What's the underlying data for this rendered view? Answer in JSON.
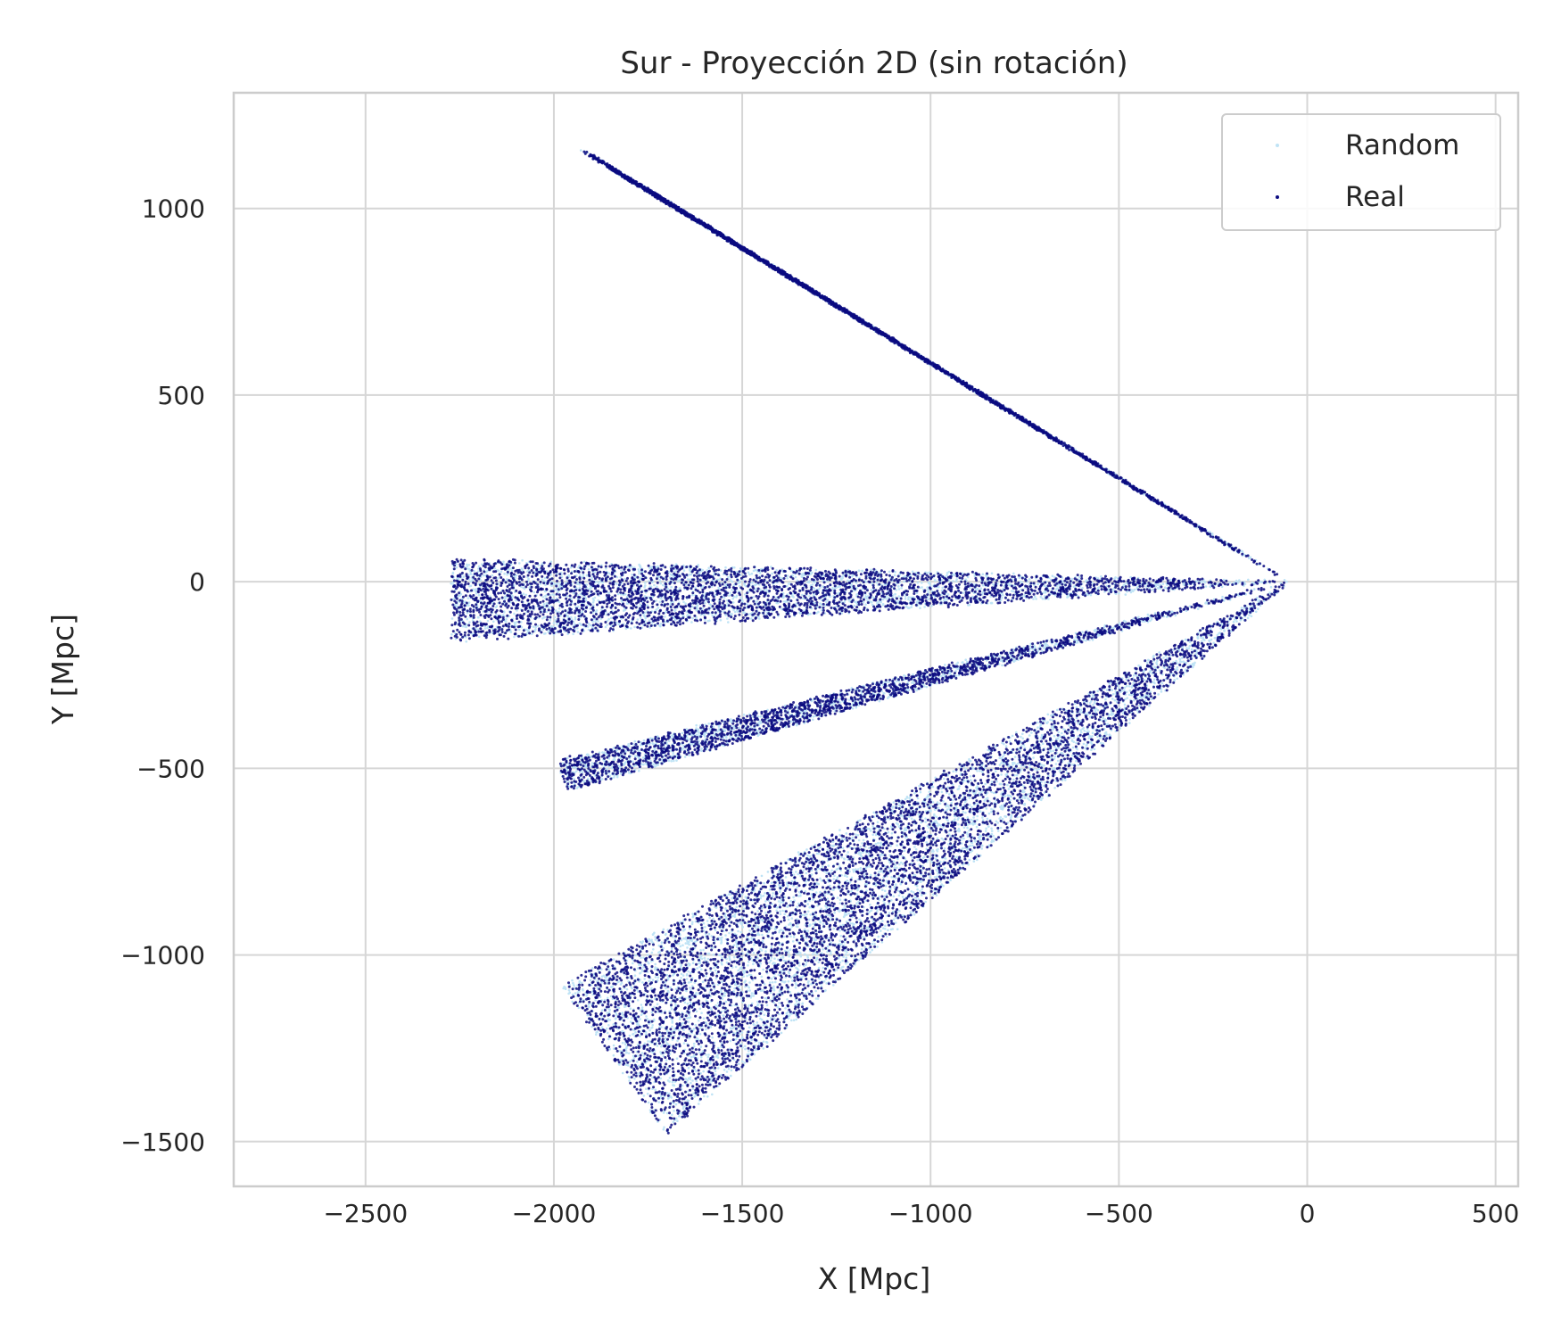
{
  "chart_data": {
    "type": "scatter",
    "title": "Sur - Proyección 2D (sin rotación)",
    "xlabel": "X [Mpc]",
    "ylabel": "Y [Mpc]",
    "xlim": [
      -2850,
      560
    ],
    "ylim": [
      -1620,
      1310
    ],
    "x_ticks": [
      -2500,
      -2000,
      -1500,
      -1000,
      -500,
      0,
      500
    ],
    "y_ticks": [
      -1500,
      -1000,
      -500,
      0,
      500,
      1000
    ],
    "x_tick_labels": [
      "−2500",
      "−2000",
      "−1500",
      "−1000",
      "−500",
      "0",
      "500"
    ],
    "y_tick_labels": [
      "−1500",
      "−1000",
      "−500",
      "0",
      "500",
      "1000"
    ],
    "grid": true,
    "legend_position": "top-right",
    "apex": [
      -50,
      0
    ],
    "series": [
      {
        "name": "Random",
        "color": "#bfe3f5",
        "wedges": [
          {
            "far_edge_from": [
              -1930,
              1160
            ],
            "far_edge_to": [
              -1820,
              1090
            ],
            "density": 2200
          },
          {
            "far_edge_from": [
              -2270,
              60
            ],
            "far_edge_to": [
              -2270,
              -160
            ],
            "density": 2600
          },
          {
            "far_edge_from": [
              -1990,
              -480
            ],
            "far_edge_to": [
              -1960,
              -560
            ],
            "density": 1400
          },
          {
            "far_edge_from": [
              -1980,
              -1080
            ],
            "far_edge_to": [
              -1700,
              -1480
            ],
            "density": 4200
          }
        ]
      },
      {
        "name": "Real",
        "color": "#0b0b80",
        "wedges": [
          {
            "far_edge_from": [
              -1930,
              1160
            ],
            "far_edge_to": [
              -1820,
              1090
            ],
            "density": 2600
          },
          {
            "far_edge_from": [
              -2270,
              60
            ],
            "far_edge_to": [
              -2270,
              -160
            ],
            "density": 3200
          },
          {
            "far_edge_from": [
              -1990,
              -480
            ],
            "far_edge_to": [
              -1960,
              -560
            ],
            "density": 1800
          },
          {
            "far_edge_from": [
              -1980,
              -1080
            ],
            "far_edge_to": [
              -1700,
              -1480
            ],
            "density": 5200
          }
        ]
      }
    ],
    "legend": [
      {
        "label": "Random",
        "color": "#bfe3f5"
      },
      {
        "label": "Real",
        "color": "#0b0b80"
      }
    ]
  }
}
